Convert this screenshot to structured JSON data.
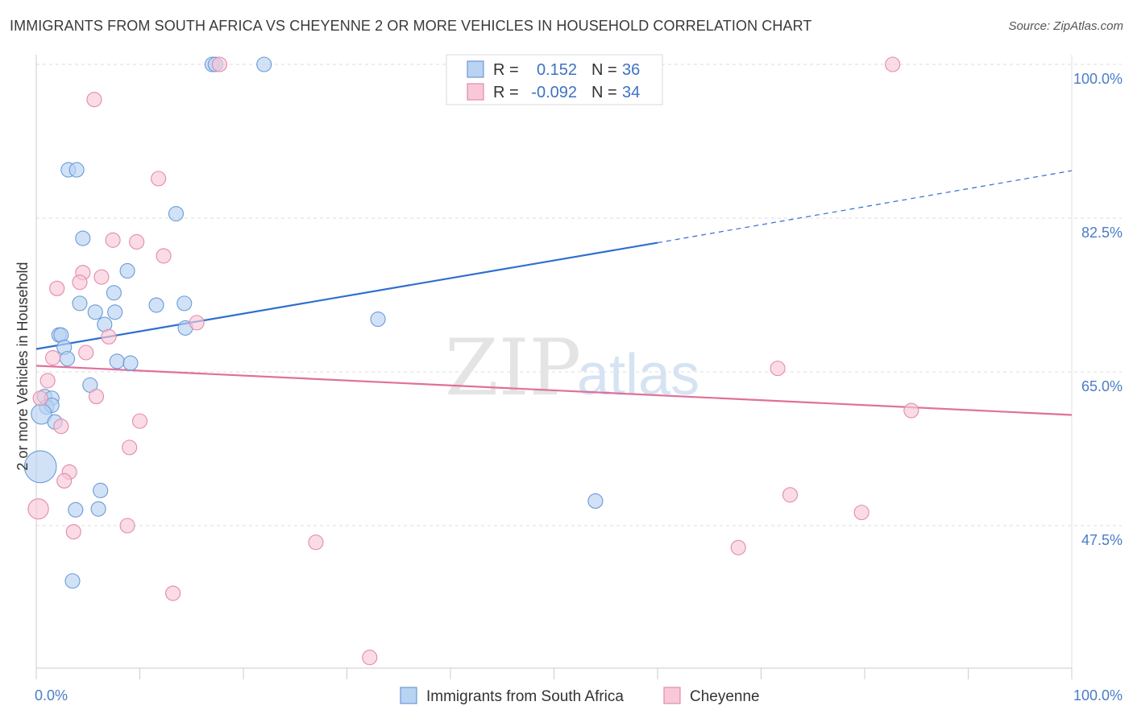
{
  "title": "IMMIGRANTS FROM SOUTH AFRICA VS CHEYENNE 2 OR MORE VEHICLES IN HOUSEHOLD CORRELATION CHART",
  "source": "Source: ZipAtlas.com",
  "watermark": {
    "zip": "ZIP",
    "atlas": "atlas"
  },
  "chart_data": {
    "type": "scatter",
    "title": "IMMIGRANTS FROM SOUTH AFRICA VS CHEYENNE 2 OR MORE VEHICLES IN HOUSEHOLD CORRELATION CHART",
    "xlabel": "",
    "ylabel": "2 or more Vehicles in Household",
    "xlim": [
      0,
      100
    ],
    "ylim": [
      30.5,
      102
    ],
    "x_tick_labels": [
      "0.0%",
      "100.0%"
    ],
    "y_ticks": [
      47.5,
      65.0,
      82.5,
      100.0
    ],
    "y_tick_labels": [
      "47.5%",
      "65.0%",
      "82.5%",
      "100.0%"
    ],
    "grid": true,
    "legend_position": "top-center",
    "colors": {
      "blue_fill": "#b9d3f3",
      "blue_stroke": "#6b9ad8",
      "blue_line": "#2f6fce",
      "pink_fill": "#f8c8d8",
      "pink_stroke": "#e48aaa",
      "pink_line": "#e0709a"
    },
    "stats": [
      {
        "r_label": "R =",
        "r": "0.152",
        "n_label": "N =",
        "n": "36"
      },
      {
        "r_label": "R =",
        "r": "-0.092",
        "n_label": "N =",
        "n": "34"
      }
    ],
    "series": [
      {
        "name": "Immigrants from South Africa",
        "color": "blue",
        "points": [
          [
            17.0,
            100.0
          ],
          [
            17.3,
            100.0
          ],
          [
            22.0,
            100.0
          ],
          [
            3.1,
            88.0
          ],
          [
            3.9,
            88.0
          ],
          [
            13.5,
            83.0
          ],
          [
            4.5,
            80.2
          ],
          [
            8.8,
            76.5
          ],
          [
            7.5,
            74.0
          ],
          [
            4.2,
            72.8
          ],
          [
            11.6,
            72.6
          ],
          [
            14.3,
            72.8
          ],
          [
            5.7,
            71.8
          ],
          [
            7.6,
            71.8
          ],
          [
            6.6,
            70.4
          ],
          [
            14.4,
            70.0
          ],
          [
            33.0,
            71.0
          ],
          [
            2.2,
            69.2
          ],
          [
            2.4,
            69.2
          ],
          [
            2.7,
            67.8
          ],
          [
            3.0,
            66.5
          ],
          [
            7.8,
            66.2
          ],
          [
            9.1,
            66.0
          ],
          [
            5.2,
            63.5
          ],
          [
            0.8,
            62.2
          ],
          [
            1.5,
            62.0
          ],
          [
            1.0,
            61.0
          ],
          [
            1.5,
            61.2
          ],
          [
            0.5,
            60.2
          ],
          [
            1.8,
            59.3
          ],
          [
            0.4,
            54.2
          ],
          [
            6.2,
            51.5
          ],
          [
            3.8,
            49.3
          ],
          [
            6.0,
            49.4
          ],
          [
            54.0,
            50.3
          ],
          [
            3.5,
            41.2
          ]
        ],
        "sizes": [
          1,
          1,
          1,
          1,
          1,
          1,
          1,
          1,
          1,
          1,
          1,
          1,
          1,
          1,
          1,
          1,
          1,
          1,
          1,
          1,
          1,
          1,
          1,
          1,
          1,
          1,
          1,
          1,
          1.4,
          1,
          2.2,
          1,
          1,
          1,
          1,
          1
        ]
      },
      {
        "name": "Cheyenne",
        "color": "pink",
        "points": [
          [
            17.7,
            100.0
          ],
          [
            82.7,
            100.0
          ],
          [
            5.6,
            96.0
          ],
          [
            11.8,
            87.0
          ],
          [
            7.4,
            80.0
          ],
          [
            9.7,
            79.8
          ],
          [
            12.3,
            78.2
          ],
          [
            4.5,
            76.3
          ],
          [
            6.3,
            75.8
          ],
          [
            4.2,
            75.2
          ],
          [
            2.0,
            74.5
          ],
          [
            15.5,
            70.6
          ],
          [
            7.0,
            69.0
          ],
          [
            4.8,
            67.2
          ],
          [
            1.6,
            66.6
          ],
          [
            71.6,
            65.4
          ],
          [
            1.1,
            64.0
          ],
          [
            5.8,
            62.2
          ],
          [
            84.5,
            60.6
          ],
          [
            10.0,
            59.4
          ],
          [
            2.4,
            58.8
          ],
          [
            9.0,
            56.4
          ],
          [
            3.2,
            53.6
          ],
          [
            2.7,
            52.6
          ],
          [
            72.8,
            51.0
          ],
          [
            0.2,
            49.4
          ],
          [
            79.7,
            49.0
          ],
          [
            8.8,
            47.5
          ],
          [
            3.6,
            46.8
          ],
          [
            27.0,
            45.6
          ],
          [
            67.8,
            45.0
          ],
          [
            13.2,
            39.8
          ],
          [
            32.2,
            32.5
          ],
          [
            0.4,
            62.0
          ]
        ],
        "sizes": [
          1,
          1,
          1,
          1,
          1,
          1,
          1,
          1,
          1,
          1,
          1,
          1,
          1,
          1,
          1,
          1,
          1,
          1,
          1,
          1,
          1,
          1,
          1,
          1,
          1,
          1.4,
          1,
          1,
          1,
          1,
          1,
          1,
          1,
          1
        ]
      }
    ],
    "trend_lines": [
      {
        "series": "Immigrants from South Africa",
        "solid_from": [
          0,
          67.6
        ],
        "solid_to": [
          60,
          79.7
        ],
        "dashed_to": [
          100,
          87.9
        ]
      },
      {
        "series": "Cheyenne",
        "solid_from": [
          0,
          65.7
        ],
        "solid_to": [
          100,
          60.1
        ]
      }
    ]
  }
}
